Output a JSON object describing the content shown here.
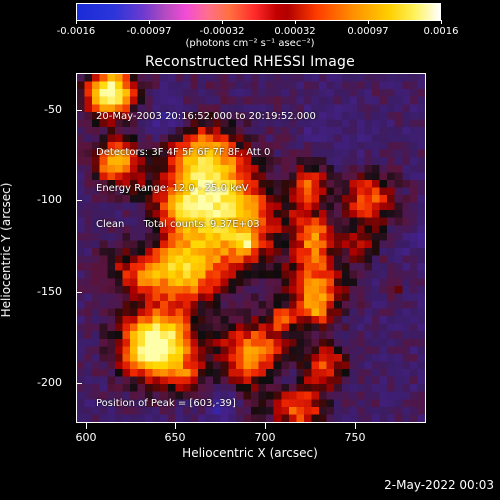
{
  "colorbar": {
    "tick_labels": [
      "-0.0016",
      "-0.00097",
      "-0.00032",
      "0.00032",
      "0.00097",
      "0.0016"
    ],
    "units": "(photons cm⁻² s⁻¹ asec⁻²)"
  },
  "title": "Reconstructed RHESSI Image",
  "overlay": {
    "time_range": "20-May-2003 20:16:52.000 to 20:19:52.000",
    "detectors": "Detectors: 3F 4F 5F 6F 7F 8F, Att 0",
    "energy_range": "Energy Range: 12.0 - 25.0 keV",
    "clean_counts": "Clean      Total counts: 9.37E+03"
  },
  "peak": "Position of Peak = [603,-39]",
  "axes": {
    "x_ticks": [
      "600",
      "650",
      "700",
      "750"
    ],
    "y_ticks": [
      "-50",
      "-100",
      "-150",
      "-200"
    ],
    "xlabel": "Heliocentric X (arcsec)",
    "ylabel": "Heliocentric Y (arcsec)"
  },
  "footer": {
    "date": "2-May-2022 00:03"
  }
}
